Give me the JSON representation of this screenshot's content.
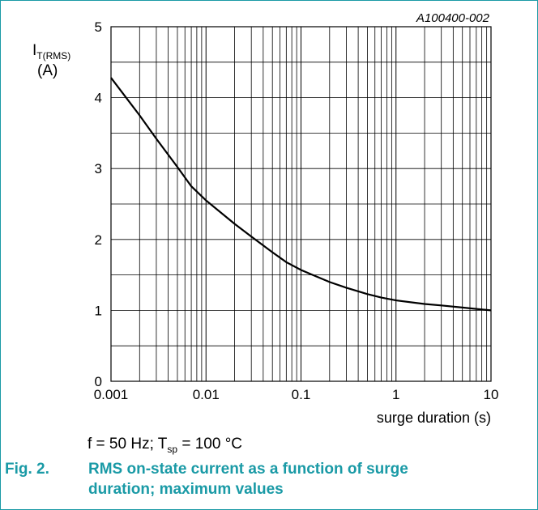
{
  "chart_data": {
    "type": "line",
    "figure_code": "A100400-002",
    "ylabel": {
      "symbol": "I",
      "subscript": "T(RMS)",
      "unit": "(A)"
    },
    "xlabel": "surge duration (s)",
    "x_scale": "log",
    "xlim": [
      0.001,
      10
    ],
    "ylim": [
      0,
      5
    ],
    "x_ticks": [
      {
        "value": 0.001,
        "label": "0.001"
      },
      {
        "value": 0.01,
        "label": "0.01"
      },
      {
        "value": 0.1,
        "label": "0.1"
      },
      {
        "value": 1,
        "label": "1"
      },
      {
        "value": 10,
        "label": "10"
      }
    ],
    "y_ticks": [
      {
        "value": 0,
        "label": "0"
      },
      {
        "value": 1,
        "label": "1"
      },
      {
        "value": 2,
        "label": "2"
      },
      {
        "value": 3,
        "label": "3"
      },
      {
        "value": 4,
        "label": "4"
      },
      {
        "value": 5,
        "label": "5"
      }
    ],
    "grid": true,
    "series": [
      {
        "color": "#000000",
        "x": [
          0.001,
          0.002,
          0.003,
          0.005,
          0.007,
          0.01,
          0.02,
          0.03,
          0.05,
          0.07,
          0.1,
          0.2,
          0.3,
          0.5,
          0.7,
          1,
          2,
          3,
          5,
          7,
          10
        ],
        "y": [
          4.28,
          3.75,
          3.42,
          3.02,
          2.75,
          2.55,
          2.22,
          2.04,
          1.82,
          1.68,
          1.57,
          1.4,
          1.32,
          1.23,
          1.18,
          1.14,
          1.09,
          1.07,
          1.04,
          1.02,
          1.0
        ]
      }
    ]
  },
  "condition": {
    "prefix": "f = 50 Hz; T",
    "subscript": "sp",
    "suffix": " = 100 °C"
  },
  "caption": {
    "number": "Fig. 2.",
    "text": "RMS on-state current as a function of surge duration; maximum values",
    "color": "#1a9aa6"
  }
}
